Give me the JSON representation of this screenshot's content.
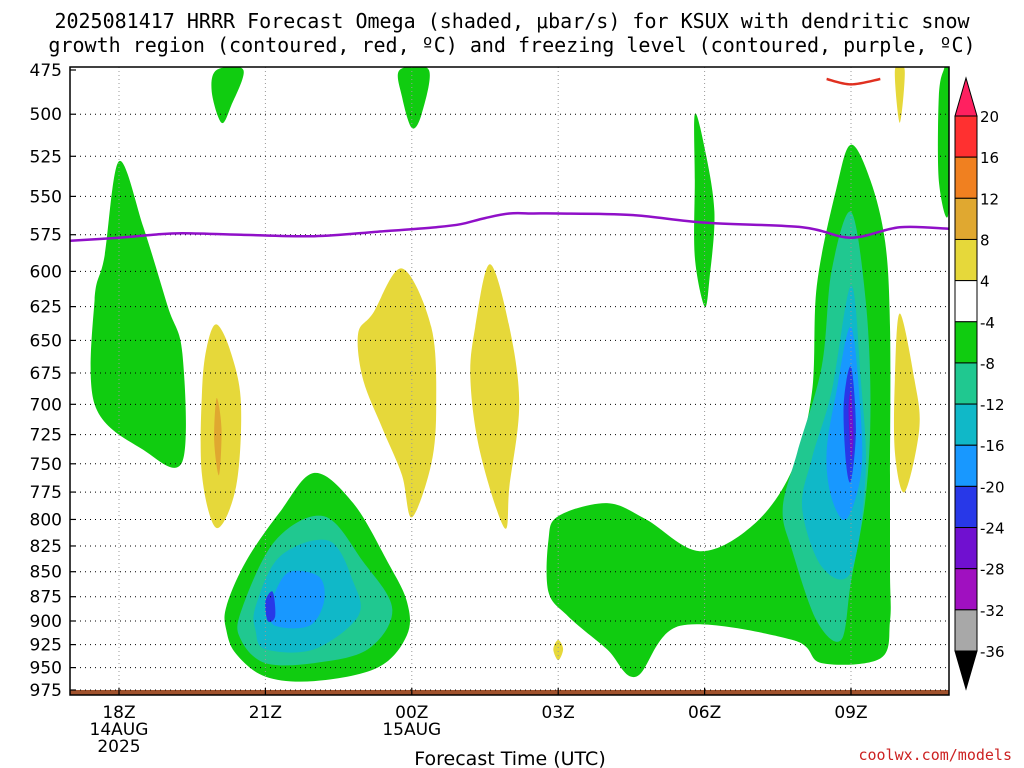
{
  "chart_data": {
    "type": "contour",
    "title_lines": [
      "2025081417 HRRR Forecast Omega (shaded, μbar/s) for KSUX with dendritic snow",
      "growth region (contoured, red, ºC) and freezing level (contoured, purple, ºC)"
    ],
    "xlabel": "Forecast Time (UTC)",
    "ylabel": "",
    "y_ticks": [
      475,
      500,
      525,
      550,
      575,
      600,
      625,
      650,
      675,
      700,
      725,
      750,
      775,
      800,
      825,
      850,
      875,
      900,
      925,
      950,
      975
    ],
    "ylim": [
      975,
      475
    ],
    "y_scale": "log-pressure",
    "x_ticks": [
      {
        "hour": 0,
        "label": [
          "18Z",
          "14AUG",
          "2025"
        ]
      },
      {
        "hour": 3,
        "label": [
          "21Z"
        ]
      },
      {
        "hour": 6,
        "label": [
          "00Z",
          "15AUG"
        ]
      },
      {
        "hour": 9,
        "label": [
          "03Z"
        ]
      },
      {
        "hour": 12,
        "label": [
          "06Z"
        ]
      },
      {
        "hour": 15,
        "label": [
          "09Z"
        ]
      }
    ],
    "xlim": [
      -1,
      17
    ],
    "grid": true,
    "colorbar": {
      "labels": [
        "20",
        "16",
        "12",
        "8",
        "4",
        "-4",
        "-8",
        "-12",
        "-16",
        "-20",
        "-24",
        "-28",
        "-32",
        "-36"
      ],
      "levels": [
        20,
        16,
        12,
        8,
        4,
        -4,
        -8,
        -12,
        -16,
        -20,
        -24,
        -28,
        -32,
        -36
      ],
      "colors": [
        "#ff2060",
        "#ff3030",
        "#f08020",
        "#e0a830",
        "#e6d83a",
        "#ffffff",
        "#10cc10",
        "#20c890",
        "#10b8c8",
        "#1898ff",
        "#2838e8",
        "#7010d0",
        "#a010c0",
        "#a8a8a8",
        "#000000"
      ]
    },
    "freezing_level": {
      "color": "#9010c8",
      "points": [
        [
          -1,
          579
        ],
        [
          0,
          577
        ],
        [
          0.7,
          575
        ],
        [
          1.3,
          574
        ],
        [
          2.5,
          575
        ],
        [
          4,
          576
        ],
        [
          5.3,
          573
        ],
        [
          6.5,
          570
        ],
        [
          7,
          568
        ],
        [
          7.5,
          564
        ],
        [
          8,
          561
        ],
        [
          8.5,
          561
        ],
        [
          9,
          561
        ],
        [
          10.5,
          562
        ],
        [
          12,
          567
        ],
        [
          14,
          570
        ],
        [
          15,
          577
        ],
        [
          16,
          570
        ],
        [
          17,
          571
        ]
      ]
    },
    "dgz_contour": {
      "color": "#e03020",
      "points": [
        [
          14.5,
          480
        ],
        [
          15.0,
          483
        ],
        [
          15.6,
          480
        ]
      ]
    },
    "omega_regions": [
      {
        "level": -4,
        "color": "#10cc10",
        "points": [
          [
            0,
            528
          ],
          [
            0.5,
            570
          ],
          [
            1,
            625
          ],
          [
            1.3,
            660
          ],
          [
            1.3,
            748
          ],
          [
            0.5,
            738
          ],
          [
            -0.5,
            700
          ],
          [
            -0.5,
            620
          ],
          [
            -0.3,
            590
          ]
        ]
      },
      {
        "level": -4,
        "color": "#10cc10",
        "points": [
          [
            2.0,
            475
          ],
          [
            2.55,
            475
          ],
          [
            2.3,
            495
          ],
          [
            2.1,
            505
          ],
          [
            1.9,
            487
          ]
        ]
      },
      {
        "level": -4,
        "color": "#10cc10",
        "points": [
          [
            5.75,
            475
          ],
          [
            6.35,
            475
          ],
          [
            6.2,
            500
          ],
          [
            6.0,
            508
          ],
          [
            5.8,
            490
          ]
        ]
      },
      {
        "level": -4,
        "color": "#10cc10",
        "points": [
          [
            11.8,
            500
          ],
          [
            12.0,
            520
          ],
          [
            12.2,
            560
          ],
          [
            12.1,
            605
          ],
          [
            12.0,
            625
          ],
          [
            11.8,
            590
          ],
          [
            11.8,
            540
          ]
        ]
      },
      {
        "level": -4,
        "color": "#10cc10",
        "points": [
          [
            16.9,
            475
          ],
          [
            17,
            475
          ],
          [
            17,
            560
          ],
          [
            16.8,
            540
          ],
          [
            16.8,
            490
          ]
        ]
      },
      {
        "level": -4,
        "color": "#10cc10",
        "points": [
          [
            2.2,
            885
          ],
          [
            2.6,
            840
          ],
          [
            3.3,
            793
          ],
          [
            4.0,
            758
          ],
          [
            4.8,
            785
          ],
          [
            5.5,
            840
          ],
          [
            5.9,
            880
          ],
          [
            5.9,
            915
          ],
          [
            5.3,
            950
          ],
          [
            4.0,
            965
          ],
          [
            3.0,
            960
          ],
          [
            2.4,
            935
          ],
          [
            2.2,
            910
          ]
        ]
      },
      {
        "level": -4,
        "color": "#10cc10",
        "points": [
          [
            8.8,
            870
          ],
          [
            8.8,
            820
          ],
          [
            9.0,
            797
          ],
          [
            10.0,
            785
          ],
          [
            10.8,
            800
          ],
          [
            11.9,
            830
          ],
          [
            13.0,
            805
          ],
          [
            13.8,
            755
          ],
          [
            14.2,
            690
          ],
          [
            14.3,
            610
          ],
          [
            14.7,
            545
          ],
          [
            15.0,
            518
          ],
          [
            15.4,
            540
          ],
          [
            15.7,
            580
          ],
          [
            15.8,
            640
          ],
          [
            15.8,
            760
          ],
          [
            15.8,
            850
          ],
          [
            15.8,
            900
          ],
          [
            15.6,
            940
          ],
          [
            14.4,
            945
          ],
          [
            13.8,
            920
          ],
          [
            11.5,
            905
          ],
          [
            10.6,
            960
          ],
          [
            10.0,
            930
          ],
          [
            9.2,
            895
          ]
        ]
      },
      {
        "level": -8,
        "color": "#20c890",
        "points": [
          [
            2.5,
            890
          ],
          [
            3.2,
            820
          ],
          [
            4.2,
            797
          ],
          [
            5.0,
            840
          ],
          [
            5.6,
            888
          ],
          [
            5.1,
            930
          ],
          [
            4.0,
            945
          ],
          [
            3.0,
            945
          ],
          [
            2.5,
            920
          ]
        ]
      },
      {
        "level": -8,
        "color": "#20c890",
        "points": [
          [
            14.4,
            670
          ],
          [
            14.6,
            600
          ],
          [
            15.0,
            560
          ],
          [
            15.3,
            620
          ],
          [
            15.4,
            700
          ],
          [
            15.3,
            780
          ],
          [
            15.0,
            860
          ],
          [
            14.8,
            920
          ],
          [
            14.3,
            900
          ],
          [
            13.8,
            830
          ],
          [
            13.6,
            790
          ],
          [
            13.9,
            740
          ]
        ]
      },
      {
        "level": -12,
        "color": "#10b8c8",
        "points": [
          [
            2.8,
            885
          ],
          [
            3.3,
            835
          ],
          [
            4.3,
            820
          ],
          [
            4.8,
            860
          ],
          [
            4.9,
            895
          ],
          [
            4.0,
            930
          ],
          [
            3.0,
            930
          ],
          [
            2.8,
            910
          ]
        ]
      },
      {
        "level": -12,
        "color": "#10b8c8",
        "points": [
          [
            14.6,
            690
          ],
          [
            15.0,
            610
          ],
          [
            15.2,
            680
          ],
          [
            15.3,
            760
          ],
          [
            15.0,
            850
          ],
          [
            14.4,
            845
          ],
          [
            14.0,
            790
          ],
          [
            14.2,
            745
          ]
        ]
      },
      {
        "level": -16,
        "color": "#1898ff",
        "points": [
          [
            3.2,
            870
          ],
          [
            3.5,
            850
          ],
          [
            4.1,
            855
          ],
          [
            4.2,
            880
          ],
          [
            3.9,
            905
          ],
          [
            3.2,
            905
          ],
          [
            3.1,
            888
          ]
        ]
      },
      {
        "level": -16,
        "color": "#1898ff",
        "points": [
          [
            14.7,
            690
          ],
          [
            15.0,
            640
          ],
          [
            15.2,
            710
          ],
          [
            15.2,
            760
          ],
          [
            14.9,
            800
          ],
          [
            14.6,
            780
          ],
          [
            14.5,
            740
          ]
        ]
      },
      {
        "level": -20,
        "color": "#2838e8",
        "points": [
          [
            14.85,
            700
          ],
          [
            15.0,
            670
          ],
          [
            15.1,
            720
          ],
          [
            15.0,
            765
          ],
          [
            14.9,
            750
          ]
        ]
      },
      {
        "level": -20,
        "color": "#2838e8",
        "points": [
          [
            3.0,
            880
          ],
          [
            3.15,
            870
          ],
          [
            3.2,
            895
          ],
          [
            3.05,
            900
          ]
        ]
      },
      {
        "level": -24,
        "color": "#7010d0",
        "points": [
          [
            14.95,
            705
          ],
          [
            15.0,
            690
          ],
          [
            15.05,
            725
          ],
          [
            15.0,
            745
          ]
        ]
      },
      {
        "level": 4,
        "color": "#e6d83a",
        "points": [
          [
            2.0,
            638
          ],
          [
            2.3,
            660
          ],
          [
            2.5,
            700
          ],
          [
            2.4,
            770
          ],
          [
            2.0,
            808
          ],
          [
            1.7,
            760
          ],
          [
            1.7,
            690
          ],
          [
            1.8,
            655
          ]
        ]
      },
      {
        "level": 4,
        "color": "#e6d83a",
        "points": [
          [
            5.2,
            630
          ],
          [
            5.8,
            598
          ],
          [
            6.4,
            640
          ],
          [
            6.5,
            700
          ],
          [
            6.4,
            750
          ],
          [
            6.0,
            798
          ],
          [
            5.8,
            760
          ],
          [
            5.4,
            720
          ],
          [
            5.0,
            680
          ],
          [
            4.9,
            645
          ]
        ]
      },
      {
        "level": 4,
        "color": "#e6d83a",
        "points": [
          [
            7.6,
            595
          ],
          [
            8.0,
            640
          ],
          [
            8.2,
            700
          ],
          [
            8.0,
            770
          ],
          [
            7.9,
            808
          ],
          [
            7.4,
            740
          ],
          [
            7.2,
            680
          ],
          [
            7.3,
            640
          ]
        ]
      },
      {
        "level": 4,
        "color": "#e6d83a",
        "points": [
          [
            9.0,
            920
          ],
          [
            9.1,
            930
          ],
          [
            9.0,
            942
          ],
          [
            8.9,
            930
          ]
        ]
      },
      {
        "level": 4,
        "color": "#e6d83a",
        "points": [
          [
            16.0,
            630
          ],
          [
            16.3,
            680
          ],
          [
            16.4,
            720
          ],
          [
            16.1,
            775
          ],
          [
            15.9,
            740
          ],
          [
            15.9,
            680
          ]
        ]
      },
      {
        "level": 4,
        "color": "#e6d83a",
        "points": [
          [
            15.9,
            475
          ],
          [
            16.1,
            475
          ],
          [
            16.0,
            505
          ]
        ]
      },
      {
        "level": 8,
        "color": "#e0a830",
        "points": [
          [
            2.0,
            695
          ],
          [
            2.1,
            720
          ],
          [
            2.05,
            760
          ],
          [
            1.95,
            730
          ]
        ]
      }
    ],
    "surface": {
      "color": "#a0522d",
      "label": ""
    }
  },
  "credit": "coolwx.com/models"
}
